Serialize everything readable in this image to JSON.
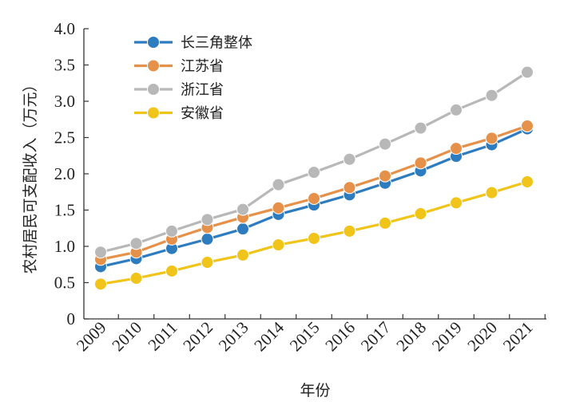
{
  "chart_data": {
    "type": "line",
    "xlabel": "年份",
    "ylabel": "农村居民可支配收入（万元）",
    "ylim": [
      0,
      4.0
    ],
    "yticks": [
      "0",
      "0.5",
      "1.0",
      "1.5",
      "2.0",
      "2.5",
      "3.0",
      "3.5",
      "4.0"
    ],
    "categories": [
      "2009",
      "2010",
      "2011",
      "2012",
      "2013",
      "2014",
      "2015",
      "2016",
      "2017",
      "2018",
      "2019",
      "2020",
      "2021"
    ],
    "grid": false,
    "legend_position": "top-left",
    "series": [
      {
        "name": "长三角整体",
        "color": "#2e7cc0",
        "values": [
          0.72,
          0.83,
          0.97,
          1.1,
          1.24,
          1.44,
          1.57,
          1.71,
          1.87,
          2.04,
          2.24,
          2.4,
          2.62
        ]
      },
      {
        "name": "江苏省",
        "color": "#e6914a",
        "values": [
          0.82,
          0.92,
          1.1,
          1.26,
          1.4,
          1.53,
          1.66,
          1.81,
          1.97,
          2.15,
          2.35,
          2.49,
          2.66
        ]
      },
      {
        "name": "浙江省",
        "color": "#b8b8b8",
        "values": [
          0.92,
          1.04,
          1.21,
          1.37,
          1.51,
          1.85,
          2.02,
          2.2,
          2.41,
          2.63,
          2.88,
          3.08,
          3.4
        ]
      },
      {
        "name": "安徽省",
        "color": "#f0c419",
        "values": [
          0.48,
          0.56,
          0.66,
          0.78,
          0.88,
          1.02,
          1.11,
          1.21,
          1.32,
          1.45,
          1.6,
          1.74,
          1.89
        ]
      }
    ]
  }
}
